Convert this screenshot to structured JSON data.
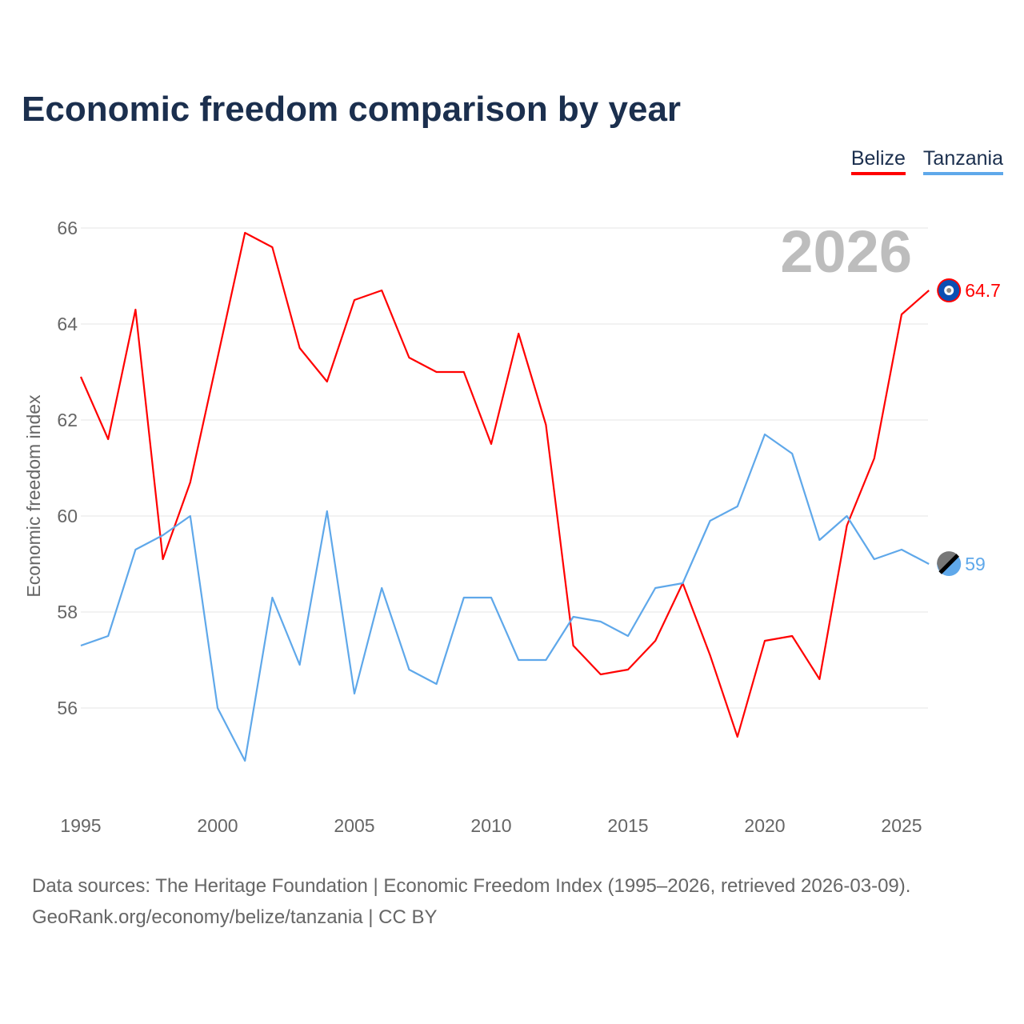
{
  "chart_data": {
    "type": "line",
    "title": "Economic freedom comparison by year",
    "xlabel": "",
    "ylabel": "Economic freedom index",
    "xlim": [
      1995,
      2026
    ],
    "ylim": [
      54.3,
      67
    ],
    "x_ticks": [
      1995,
      2000,
      2005,
      2010,
      2015,
      2020,
      2025
    ],
    "y_ticks": [
      56,
      58,
      60,
      62,
      64,
      66
    ],
    "grid": true,
    "legend_position": "top-right",
    "year_label": "2026",
    "x": [
      1995,
      1996,
      1997,
      1998,
      1999,
      2000,
      2001,
      2002,
      2003,
      2004,
      2005,
      2006,
      2007,
      2008,
      2009,
      2010,
      2011,
      2012,
      2013,
      2014,
      2015,
      2016,
      2017,
      2018,
      2019,
      2020,
      2021,
      2022,
      2023,
      2024,
      2025,
      2026
    ],
    "series": [
      {
        "name": "Belize",
        "color": "#ff0000",
        "end_label": "64.7",
        "flag_icon": "belize-flag-icon",
        "values": [
          62.9,
          61.6,
          64.3,
          59.1,
          60.7,
          63.3,
          65.9,
          65.6,
          63.5,
          62.8,
          64.5,
          64.7,
          63.3,
          63.0,
          63.0,
          61.5,
          63.8,
          61.9,
          57.3,
          56.7,
          56.8,
          57.4,
          58.6,
          57.1,
          55.4,
          57.4,
          57.5,
          56.6,
          59.8,
          61.2,
          64.2,
          64.7
        ]
      },
      {
        "name": "Tanzania",
        "color": "#5fa8ea",
        "end_label": "59",
        "flag_icon": "tanzania-flag-icon",
        "values": [
          57.3,
          57.5,
          59.3,
          59.6,
          60.0,
          56.0,
          54.9,
          58.3,
          56.9,
          60.1,
          56.3,
          58.5,
          56.8,
          56.5,
          58.3,
          58.3,
          57.0,
          57.0,
          57.9,
          57.8,
          57.5,
          58.5,
          58.6,
          59.9,
          60.2,
          61.7,
          61.3,
          59.5,
          60.0,
          59.1,
          59.3,
          59.0
        ]
      }
    ]
  },
  "footer": {
    "line1": "Data sources: The Heritage Foundation | Economic Freedom Index (1995–2026, retrieved 2026-03-09).",
    "line2": "GeoRank.org/economy/belize/tanzania | CC BY"
  }
}
